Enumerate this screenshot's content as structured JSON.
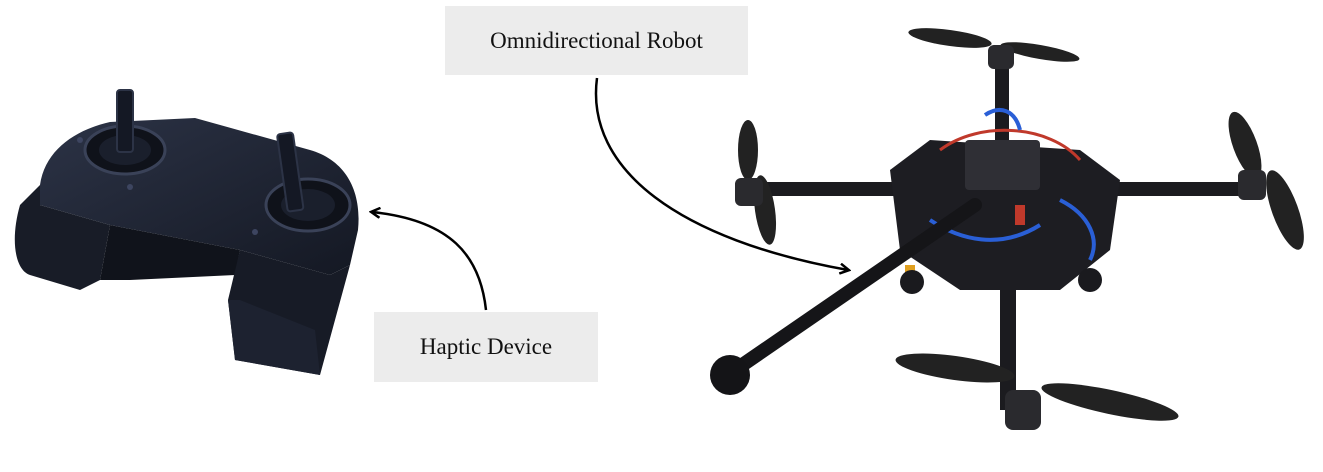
{
  "labels": {
    "robot": "Omnidirectional Robot",
    "haptic": "Haptic Device"
  },
  "objects": {
    "controller": "haptic-controller-image",
    "robot": "omnidirectional-drone-image"
  },
  "colors": {
    "label_bg": "#ececec",
    "device_body": "#1f2433",
    "carbon": "#1b1b1f",
    "wire_blue": "#2a5fd6",
    "wire_red": "#c0392b",
    "arrow": "#000000"
  }
}
